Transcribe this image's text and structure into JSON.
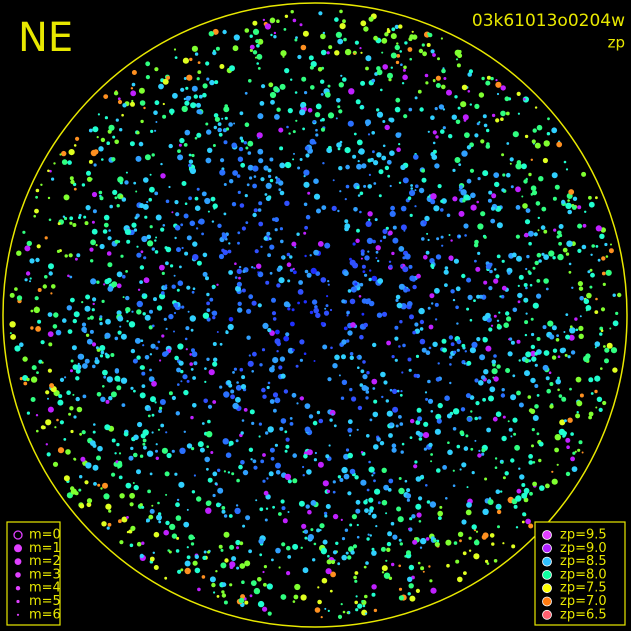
{
  "header": {
    "direction": "NE",
    "frame_id": "03k61013o0204w",
    "mode": "zp"
  },
  "magnitude_legend": {
    "items": [
      {
        "label": "m=0"
      },
      {
        "label": "m=1"
      },
      {
        "label": "m=2"
      },
      {
        "label": "m=3"
      },
      {
        "label": "m=4"
      },
      {
        "label": "m=5"
      },
      {
        "label": "m=6"
      }
    ]
  },
  "zp_legend": {
    "items": [
      {
        "label": "zp=9.5",
        "color": "#e040ff"
      },
      {
        "label": "zp=9.0",
        "color": "#b020ff"
      },
      {
        "label": "zp=8.5",
        "color": "#30c0ff"
      },
      {
        "label": "zp=8.0",
        "color": "#10ffa0"
      },
      {
        "label": "zp=7.5",
        "color": "#ffff00"
      },
      {
        "label": "zp=7.0",
        "color": "#ff7a10"
      },
      {
        "label": "zp=6.5",
        "color": "#ff6070"
      }
    ]
  }
}
